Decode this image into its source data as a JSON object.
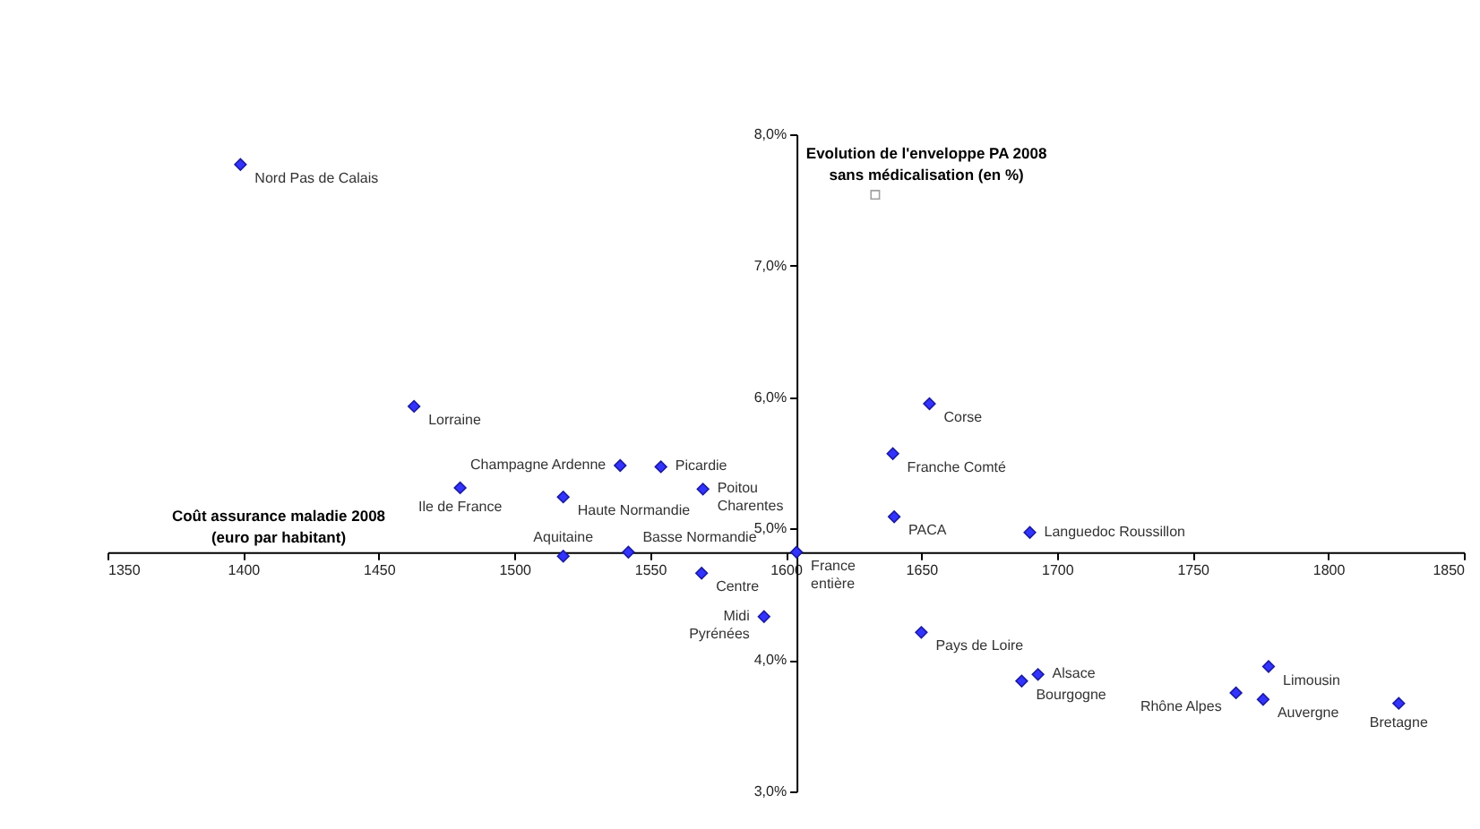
{
  "chart_data": {
    "type": "scatter",
    "xlabel": "Coût assurance maladie 2008\n(euro par habitant)",
    "ylabel": "Evolution de l'enveloppe PA 2008\nsans médicalisation (en %)",
    "xlim": [
      1350,
      1850
    ],
    "xticks": [
      1350,
      1400,
      1450,
      1500,
      1550,
      1600,
      1650,
      1700,
      1750,
      1800,
      1850
    ],
    "ylim": [
      3.0,
      8.0
    ],
    "yticks": [
      {
        "value": 3,
        "label": "3,0%"
      },
      {
        "value": 4,
        "label": "4,0%"
      },
      {
        "value": 5,
        "label": "5,0%"
      },
      {
        "value": 6,
        "label": "6,0%"
      },
      {
        "value": 7,
        "label": "7,0%"
      },
      {
        "value": 8,
        "label": "8,0%"
      }
    ],
    "series": [
      {
        "color": "#3333ff",
        "marker": "diamond",
        "x": [
          1399,
          1463,
          1480,
          1518,
          1539,
          1554,
          1569.5,
          1518,
          1542,
          1569,
          1592,
          1650,
          1687,
          1693,
          1766,
          1776,
          1778,
          1826,
          1653,
          1639.5,
          1640,
          1690,
          1604
        ],
        "values": [
          7.77,
          5.93,
          5.31,
          5.24,
          5.48,
          5.47,
          5.3,
          4.79,
          4.82,
          4.66,
          4.33,
          4.21,
          3.84,
          3.89,
          3.75,
          3.7,
          3.95,
          3.67,
          5.95,
          5.57,
          5.09,
          4.97,
          4.82
        ]
      },
      {
        "color": "#a0a0a0",
        "marker": "square",
        "x": [
          1633
        ],
        "values": [
          7.54
        ]
      }
    ],
    "annotations": [
      {
        "text": "Nord Pas de Calais",
        "x": 1399,
        "y": 7.77
      },
      {
        "text": "Lorraine",
        "x": 1463,
        "y": 5.93
      },
      {
        "text": "Ile de France",
        "x": 1480,
        "y": 5.31
      },
      {
        "text": "Haute Normandie",
        "x": 1518,
        "y": 5.24
      },
      {
        "text": "Champagne Ardenne",
        "x": 1539,
        "y": 5.48
      },
      {
        "text": "Picardie",
        "x": 1554,
        "y": 5.47
      },
      {
        "text": "Poitou\nCharentes",
        "x": 1569.5,
        "y": 5.3
      },
      {
        "text": "Aquitaine",
        "x": 1518,
        "y": 4.79
      },
      {
        "text": "Basse Normandie",
        "x": 1542,
        "y": 4.82
      },
      {
        "text": "Centre",
        "x": 1569,
        "y": 4.66
      },
      {
        "text": "Midi\nPyrénées",
        "x": 1592,
        "y": 4.33
      },
      {
        "text": "Pays de Loire",
        "x": 1650,
        "y": 4.21
      },
      {
        "text": "Bourgogne",
        "x": 1687,
        "y": 3.84
      },
      {
        "text": "Alsace",
        "x": 1693,
        "y": 3.89
      },
      {
        "text": "Rhône Alpes",
        "x": 1766,
        "y": 3.75
      },
      {
        "text": "Auvergne",
        "x": 1776,
        "y": 3.7
      },
      {
        "text": "Limousin",
        "x": 1778,
        "y": 3.95
      },
      {
        "text": "Bretagne",
        "x": 1826,
        "y": 3.67
      },
      {
        "text": "Corse",
        "x": 1653,
        "y": 5.95
      },
      {
        "text": "Franche Comté",
        "x": 1639.5,
        "y": 5.57
      },
      {
        "text": "PACA",
        "x": 1640,
        "y": 5.09
      },
      {
        "text": "Languedoc Roussillon",
        "x": 1690,
        "y": 4.97
      },
      {
        "text": "France\nentière",
        "x": 1604,
        "y": 4.82
      }
    ]
  }
}
